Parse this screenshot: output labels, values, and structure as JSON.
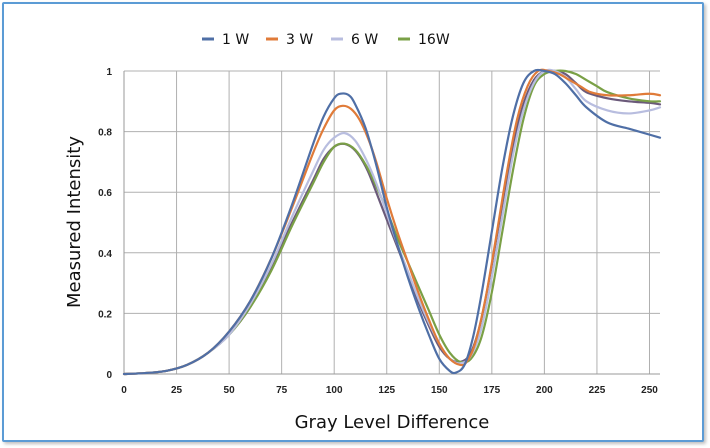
{
  "chart_data": {
    "type": "line",
    "title": "",
    "xlabel": "Gray Level Difference",
    "ylabel": "Measured Intensity",
    "xlim": [
      0,
      255
    ],
    "ylim": [
      0,
      1
    ],
    "grid": true,
    "legend_position": "top",
    "x_ticks": [
      "0",
      "25",
      "50",
      "75",
      "100",
      "125",
      "150",
      "175",
      "200",
      "225",
      "250"
    ],
    "y_ticks": [
      "0",
      "0.2",
      "0.4",
      "0.6",
      "0.8",
      "1"
    ],
    "series": [
      {
        "name": "1 W",
        "color": "#4f6fa6",
        "x": [
          0,
          10,
          20,
          30,
          40,
          50,
          60,
          70,
          80,
          90,
          95,
          100,
          103,
          107,
          110,
          115,
          120,
          125,
          130,
          135,
          140,
          145,
          150,
          155,
          158,
          162,
          166,
          170,
          175,
          180,
          185,
          190,
          195,
          200,
          205,
          210,
          215,
          220,
          230,
          240,
          250,
          255
        ],
        "y": [
          0,
          0.003,
          0.01,
          0.03,
          0.07,
          0.14,
          0.24,
          0.38,
          0.56,
          0.76,
          0.85,
          0.91,
          0.925,
          0.92,
          0.89,
          0.81,
          0.69,
          0.55,
          0.43,
          0.32,
          0.22,
          0.13,
          0.05,
          0.01,
          0.005,
          0.03,
          0.12,
          0.26,
          0.47,
          0.68,
          0.85,
          0.96,
          1.0,
          1.0,
          0.99,
          0.96,
          0.92,
          0.88,
          0.83,
          0.81,
          0.79,
          0.78
        ]
      },
      {
        "name": "3 W",
        "color": "#e07b39",
        "x": [
          0,
          10,
          20,
          30,
          40,
          50,
          60,
          70,
          80,
          90,
          95,
          100,
          104,
          108,
          112,
          116,
          120,
          125,
          130,
          135,
          140,
          145,
          150,
          155,
          160,
          163,
          167,
          172,
          177,
          182,
          187,
          192,
          197,
          202,
          207,
          212,
          217,
          222,
          230,
          240,
          250,
          255
        ],
        "y": [
          0,
          0.003,
          0.01,
          0.03,
          0.07,
          0.14,
          0.24,
          0.38,
          0.55,
          0.73,
          0.81,
          0.87,
          0.885,
          0.875,
          0.84,
          0.78,
          0.7,
          0.58,
          0.47,
          0.37,
          0.27,
          0.18,
          0.1,
          0.05,
          0.03,
          0.04,
          0.1,
          0.25,
          0.45,
          0.66,
          0.84,
          0.95,
          1.0,
          1.0,
          0.99,
          0.97,
          0.95,
          0.93,
          0.92,
          0.92,
          0.925,
          0.92
        ]
      },
      {
        "name": "6 W",
        "color": "#b8bddf",
        "x": [
          0,
          10,
          20,
          30,
          40,
          50,
          60,
          70,
          80,
          90,
          95,
          100,
          105,
          110,
          115,
          120,
          125,
          130,
          135,
          140,
          145,
          150,
          155,
          160,
          165,
          170,
          175,
          180,
          185,
          190,
          195,
          200,
          205,
          210,
          215,
          220,
          230,
          240,
          250,
          255
        ],
        "y": [
          0,
          0.003,
          0.01,
          0.03,
          0.07,
          0.13,
          0.23,
          0.36,
          0.52,
          0.67,
          0.74,
          0.78,
          0.795,
          0.77,
          0.71,
          0.63,
          0.53,
          0.43,
          0.34,
          0.25,
          0.17,
          0.1,
          0.05,
          0.035,
          0.06,
          0.15,
          0.32,
          0.52,
          0.72,
          0.87,
          0.96,
          1.0,
          1.0,
          0.98,
          0.94,
          0.9,
          0.87,
          0.86,
          0.87,
          0.88
        ]
      },
      {
        "name": "16W",
        "color": "#7aa046",
        "x": [
          0,
          10,
          20,
          30,
          40,
          50,
          60,
          70,
          80,
          90,
          95,
          100,
          105,
          110,
          115,
          120,
          125,
          130,
          135,
          140,
          145,
          150,
          155,
          160,
          165,
          170,
          175,
          180,
          185,
          190,
          195,
          200,
          205,
          210,
          215,
          220,
          225,
          230,
          240,
          250,
          255
        ],
        "y": [
          0,
          0.003,
          0.01,
          0.03,
          0.07,
          0.13,
          0.22,
          0.34,
          0.49,
          0.63,
          0.7,
          0.75,
          0.76,
          0.74,
          0.69,
          0.62,
          0.54,
          0.45,
          0.37,
          0.29,
          0.21,
          0.13,
          0.07,
          0.04,
          0.05,
          0.12,
          0.27,
          0.47,
          0.67,
          0.84,
          0.95,
          0.99,
          1.0,
          1.0,
          0.99,
          0.97,
          0.95,
          0.93,
          0.91,
          0.9,
          0.9
        ]
      },
      {
        "name": "",
        "color": "#6b5a7a",
        "x": [
          0,
          10,
          20,
          30,
          40,
          50,
          60,
          70,
          80,
          90,
          95,
          100,
          104,
          108,
          112,
          116,
          120,
          125,
          130,
          135,
          140,
          145,
          150,
          155,
          160,
          165,
          170,
          175,
          180,
          185,
          190,
          195,
          200,
          205,
          210,
          215,
          220,
          230,
          240,
          250,
          255
        ],
        "y": [
          0,
          0.003,
          0.01,
          0.03,
          0.07,
          0.13,
          0.22,
          0.35,
          0.5,
          0.64,
          0.71,
          0.75,
          0.76,
          0.75,
          0.72,
          0.67,
          0.6,
          0.51,
          0.42,
          0.33,
          0.24,
          0.16,
          0.09,
          0.05,
          0.04,
          0.07,
          0.18,
          0.36,
          0.56,
          0.75,
          0.89,
          0.97,
          1.0,
          1.0,
          0.99,
          0.96,
          0.93,
          0.91,
          0.9,
          0.895,
          0.89
        ]
      }
    ]
  }
}
